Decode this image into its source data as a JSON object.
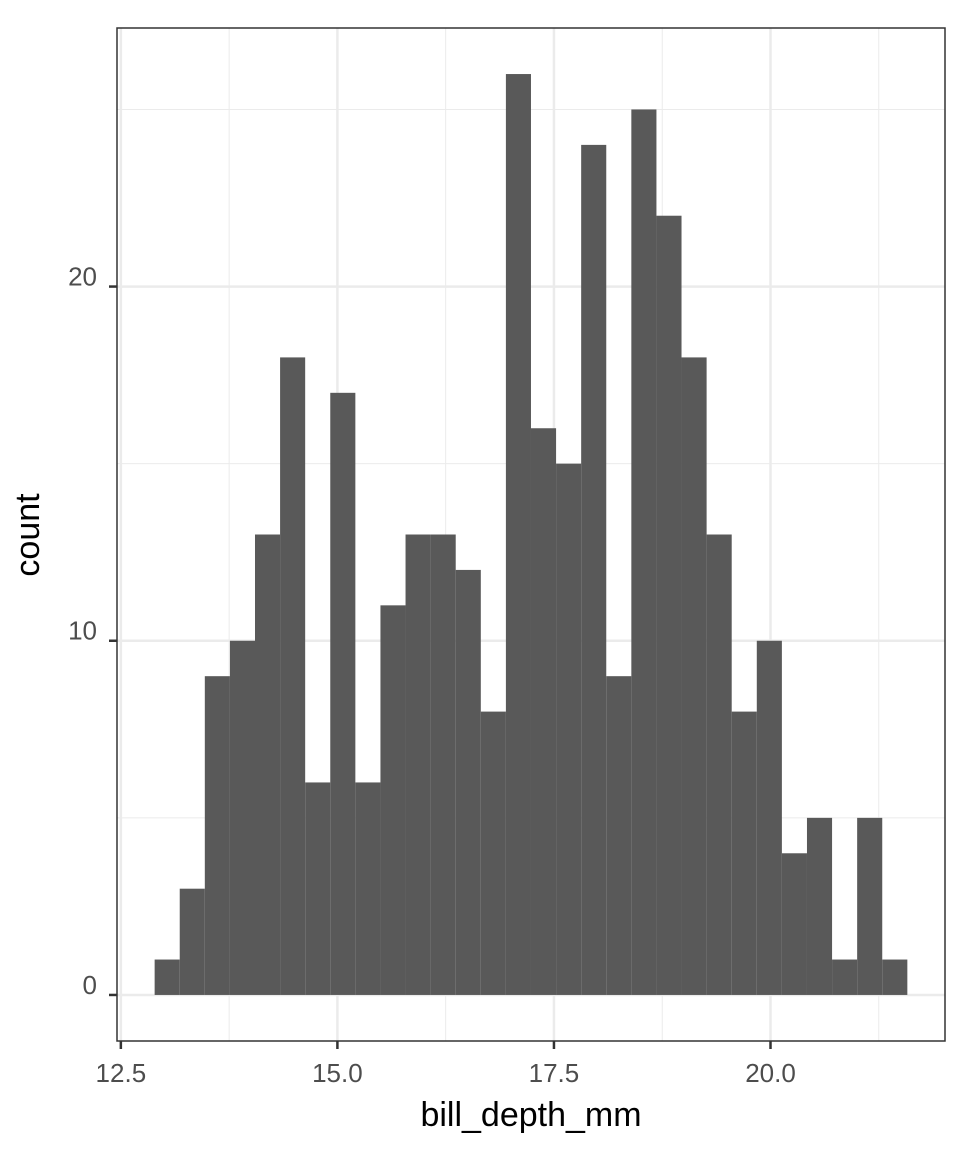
{
  "chart_data": {
    "type": "histogram",
    "x_label": "bill_depth_mm",
    "y_label": "count",
    "bins": [
      12.89,
      13.1797,
      13.4693,
      13.759,
      14.0486,
      14.3383,
      14.6279,
      14.9176,
      15.2072,
      15.4969,
      15.7866,
      16.0762,
      16.3659,
      16.6555,
      16.9452,
      17.2348,
      17.5245,
      17.8141,
      18.1038,
      18.3934,
      18.6831,
      18.9728,
      19.2624,
      19.5521,
      19.8417,
      20.1314,
      20.421,
      20.7107,
      21.0003,
      21.29,
      21.5797
    ],
    "values": [
      1,
      3,
      9,
      10,
      13,
      18,
      6,
      17,
      6,
      11,
      13,
      13,
      12,
      8,
      26,
      16,
      15,
      24,
      9,
      25,
      22,
      18,
      13,
      8,
      10,
      4,
      5,
      1,
      5,
      1
    ],
    "color": "#595959",
    "xlim": [
      12.4555,
      22.0145
    ],
    "xticks": [
      12.5,
      {
        "value": 15.0,
        "label": "15.0"
      },
      17.5,
      {
        "value": 20.0,
        "label": "20.0"
      }
    ],
    "ylim": [
      -1.3,
      27.3
    ],
    "yticks": [
      0,
      10,
      20
    ],
    "grid": true
  }
}
